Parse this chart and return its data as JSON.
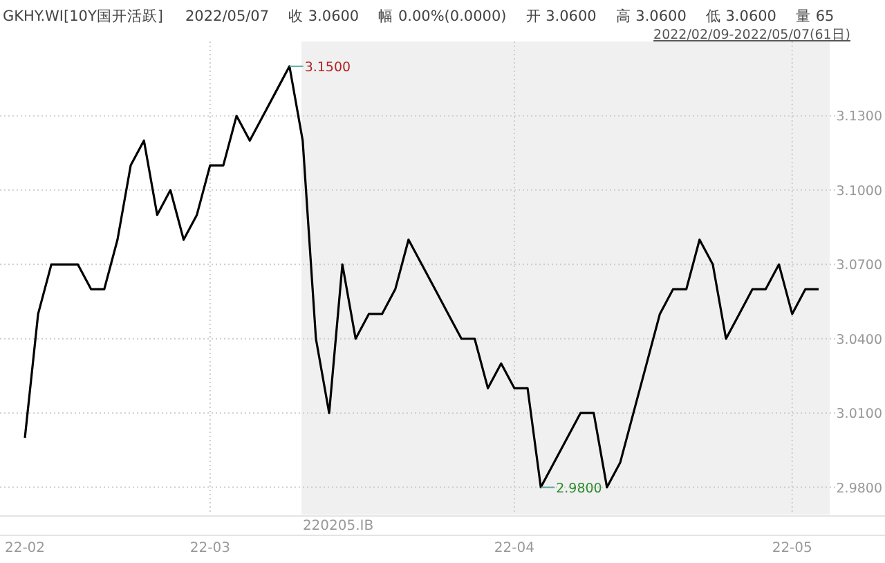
{
  "chart_data": {
    "type": "line",
    "title": "GKHY.WI[10Y国开活跃]",
    "subtitle": "2022/02/09-2022/05/07(61日)",
    "annotations": [
      "2022/05/07",
      "收 3.0600",
      "幅 0.00%(0.0000)",
      "开 3.0600",
      "高 3.0600",
      "低 3.0600",
      "量 65",
      "220205.IB",
      "3.1500",
      "2.9800"
    ],
    "categories": [
      "22-02",
      null,
      null,
      null,
      null,
      null,
      null,
      null,
      null,
      null,
      null,
      null,
      null,
      null,
      "22-03",
      null,
      null,
      null,
      null,
      null,
      null,
      null,
      null,
      null,
      null,
      null,
      null,
      null,
      null,
      null,
      null,
      null,
      null,
      null,
      null,
      null,
      null,
      "22-04",
      null,
      null,
      null,
      null,
      null,
      null,
      null,
      null,
      null,
      null,
      null,
      null,
      null,
      null,
      null,
      null,
      null,
      null,
      null,
      null,
      "22-05",
      null,
      null
    ],
    "series": [
      {
        "color": "#000000",
        "values": [
          3.0,
          3.05,
          3.07,
          3.07,
          3.07,
          3.06,
          3.06,
          3.08,
          3.11,
          3.12,
          3.09,
          3.1,
          3.08,
          3.09,
          3.11,
          3.11,
          3.13,
          3.12,
          3.13,
          3.14,
          3.15,
          3.12,
          3.04,
          3.01,
          3.07,
          3.04,
          3.05,
          3.05,
          3.06,
          3.08,
          3.07,
          3.06,
          3.05,
          3.04,
          3.04,
          3.02,
          3.03,
          3.02,
          3.02,
          2.98,
          2.99,
          3.0,
          3.01,
          3.01,
          2.98,
          2.99,
          3.01,
          3.03,
          3.05,
          3.06,
          3.06,
          3.08,
          3.07,
          3.04,
          3.05,
          3.06,
          3.06,
          3.07,
          3.05,
          3.06,
          3.06
        ]
      }
    ],
    "ylim": [
      2.969,
      3.16
    ],
    "yticks": [
      {
        "value": 2.98,
        "label": "2.9800"
      },
      {
        "value": 3.01,
        "label": "3.0100"
      },
      {
        "value": 3.04,
        "label": "3.0400"
      },
      {
        "value": 3.07,
        "label": "3.0700"
      },
      {
        "value": 3.1,
        "label": "3.1000"
      },
      {
        "value": 3.13,
        "label": "3.1300"
      }
    ],
    "grid": true,
    "marker": "none",
    "line_style": "solid"
  }
}
